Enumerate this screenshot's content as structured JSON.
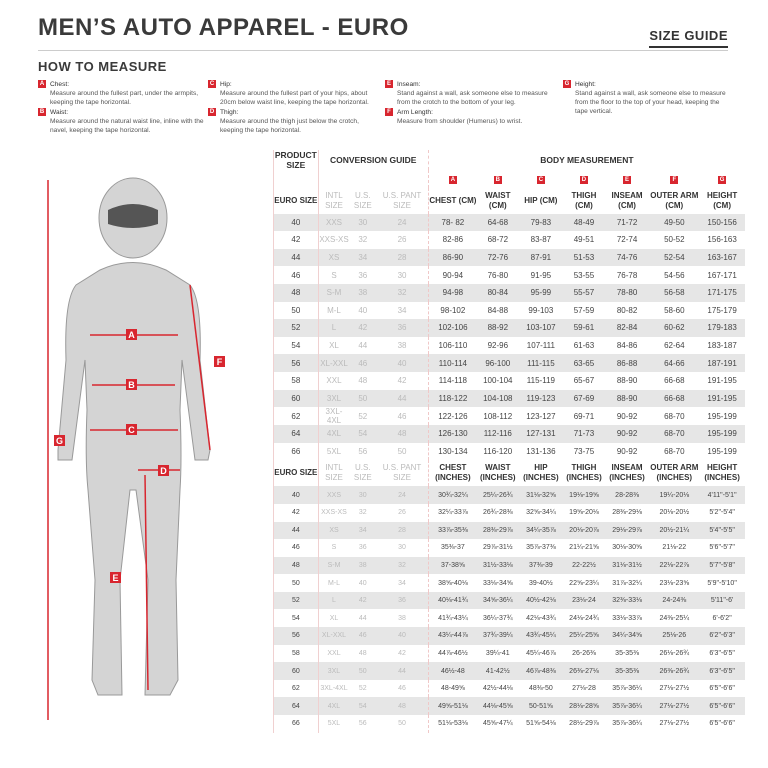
{
  "header": {
    "title": "MEN’S AUTO APPAREL - EURO",
    "size_guide": "SIZE GUIDE",
    "how_to_measure": "HOW TO MEASURE"
  },
  "instructions": [
    {
      "letter": "A",
      "label": "Chest:",
      "text": "Measure around the fullest part, under the armpits, keeping the tape horizontal."
    },
    {
      "letter": "B",
      "label": "Waist:",
      "text": "Measure around the natural waist line, inline with the navel, keeping the tape horizontal."
    },
    {
      "letter": "C",
      "label": "Hip:",
      "text": "Measure around the fullest part of your hips, about 20cm below waist line, keeping the tape horizontal."
    },
    {
      "letter": "D",
      "label": "Thigh:",
      "text": "Measure around the thigh just below the crotch, keeping the tape horizontal."
    },
    {
      "letter": "E",
      "label": "Inseam:",
      "text": "Stand against a wall, ask someone else to measure from the crotch to the bottom of your leg."
    },
    {
      "letter": "F",
      "label": "Arm Length:",
      "text": "Measure from shoulder (Humerus) to wrist."
    },
    {
      "letter": "G",
      "label": "Height:",
      "text": "Stand against a wall, ask someone else to measure from the floor to the top of your head, keeping the tape vertical."
    }
  ],
  "table": {
    "group_product": "PRODUCT SIZE",
    "group_conversion": "CONVERSION GUIDE",
    "group_body": "BODY MEASUREMENT",
    "accent": "#d8262f",
    "cm_headers": [
      "EURO SIZE",
      "INTL SIZE",
      "U.S. SIZE",
      "U.S. PANT SIZE",
      "CHEST (CM)",
      "WAIST (CM)",
      "HIP (CM)",
      "THIGH (CM)",
      "INSEAM (CM)",
      "OUTER ARM (CM)",
      "HEIGHT (CM)"
    ],
    "letters": [
      "A",
      "B",
      "C",
      "D",
      "E",
      "F",
      "G"
    ],
    "in_headers": [
      "EURO SIZE",
      "INTL SIZE",
      "U.S. SIZE",
      "U.S. PANT SIZE",
      "CHEST (INCHES)",
      "WAIST (INCHES)",
      "HIP (INCHES)",
      "THIGH (INCHES)",
      "INSEAM (INCHES)",
      "OUTER ARM (INCHES)",
      "HEIGHT (INCHES)"
    ],
    "sizes": [
      [
        "40",
        "XXS",
        "30",
        "24"
      ],
      [
        "42",
        "XXS-XS",
        "32",
        "26"
      ],
      [
        "44",
        "XS",
        "34",
        "28"
      ],
      [
        "46",
        "S",
        "36",
        "30"
      ],
      [
        "48",
        "S-M",
        "38",
        "32"
      ],
      [
        "50",
        "M-L",
        "40",
        "34"
      ],
      [
        "52",
        "L",
        "42",
        "36"
      ],
      [
        "54",
        "XL",
        "44",
        "38"
      ],
      [
        "56",
        "XL-XXL",
        "46",
        "40"
      ],
      [
        "58",
        "XXL",
        "48",
        "42"
      ],
      [
        "60",
        "3XL",
        "50",
        "44"
      ],
      [
        "62",
        "3XL-4XL",
        "52",
        "46"
      ],
      [
        "64",
        "4XL",
        "54",
        "48"
      ],
      [
        "66",
        "5XL",
        "56",
        "50"
      ]
    ],
    "cm_rows": [
      [
        "78- 82",
        "64-68",
        "79-83",
        "48-49",
        "71-72",
        "49-50",
        "150-156"
      ],
      [
        "82-86",
        "68-72",
        "83-87",
        "49-51",
        "72-74",
        "50-52",
        "156-163"
      ],
      [
        "86-90",
        "72-76",
        "87-91",
        "51-53",
        "74-76",
        "52-54",
        "163-167"
      ],
      [
        "90-94",
        "76-80",
        "91-95",
        "53-55",
        "76-78",
        "54-56",
        "167-171"
      ],
      [
        "94-98",
        "80-84",
        "95-99",
        "55-57",
        "78-80",
        "56-58",
        "171-175"
      ],
      [
        "98-102",
        "84-88",
        "99-103",
        "57-59",
        "80-82",
        "58-60",
        "175-179"
      ],
      [
        "102-106",
        "88-92",
        "103-107",
        "59-61",
        "82-84",
        "60-62",
        "179-183"
      ],
      [
        "106-110",
        "92-96",
        "107-111",
        "61-63",
        "84-86",
        "62-64",
        "183-187"
      ],
      [
        "110-114",
        "96-100",
        "111-115",
        "63-65",
        "86-88",
        "64-66",
        "187-191"
      ],
      [
        "114-118",
        "100-104",
        "115-119",
        "65-67",
        "88-90",
        "66-68",
        "191-195"
      ],
      [
        "118-122",
        "104-108",
        "119-123",
        "67-69",
        "88-90",
        "66-68",
        "191-195"
      ],
      [
        "122-126",
        "108-112",
        "123-127",
        "69-71",
        "90-92",
        "68-70",
        "195-199"
      ],
      [
        "126-130",
        "112-116",
        "127-131",
        "71-73",
        "90-92",
        "68-70",
        "195-199"
      ],
      [
        "130-134",
        "116-120",
        "131-136",
        "73-75",
        "90-92",
        "68-70",
        "195-199"
      ]
    ],
    "in_rows": [
      [
        "30¾-32¼",
        "25¼-26¾",
        "31⅛-32⅝",
        "19⅛-19⅝",
        "28-28⅜",
        "19¼-20⅛",
        "4'11\"-5'1\""
      ],
      [
        "32¼-33⅞",
        "26¾-28⅜",
        "32⅝-34¼",
        "19⅝-20⅛",
        "28⅜-29⅛",
        "20⅛-20½",
        "5'2\"-5'4\""
      ],
      [
        "33⅞-35⅜",
        "28⅜-29⅞",
        "34¼-35⅞",
        "20⅛-20⅞",
        "29⅛-29⅞",
        "20½-21¼",
        "5'4\"-5'5\""
      ],
      [
        "35⅜-37",
        "29⅞-31½",
        "35⅞-37⅜",
        "21¼-21⅝",
        "30⅛-30⅝",
        "21⅛-22",
        "5'6\"-5'7\""
      ],
      [
        "37-38⅝",
        "31½-33⅛",
        "37⅜-39",
        "22-22½",
        "31⅛-31½",
        "22⅛-22⅞",
        "5'7\"-5'8\""
      ],
      [
        "38⅝-40⅛",
        "33⅛-34⅝",
        "39-40½",
        "22⅝-23¼",
        "31⅞-32¼",
        "23⅛-23⅝",
        "5'9\"-5'10\""
      ],
      [
        "40⅛-41¾",
        "34⅝-36¼",
        "40½-42⅛",
        "23⅛-24",
        "32⅜-33⅛",
        "24-24⅜",
        "5'11\"-6'"
      ],
      [
        "41¾-43¼",
        "36¼-37¾",
        "42⅛-43¾",
        "24⅛-24¾",
        "33⅛-33⅞",
        "24⅜-25¼",
        "6'-6'2\""
      ],
      [
        "43¼-44⅞",
        "37¾-39¼",
        "43¾-45¼",
        "25¼-25⅝",
        "34¼-34⅝",
        "25⅛-26",
        "6'2\"-6'3\""
      ],
      [
        "44⅞-46½",
        "39¼-41",
        "45¼-46⅞",
        "26-26⅜",
        "35-35⅜",
        "26⅛-26¾",
        "6'3\"-6'5\""
      ],
      [
        "46½-48",
        "41-42½",
        "46⅞-48⅜",
        "26⅜-27⅛",
        "35-35⅜",
        "26⅜-26¾",
        "6'3\"-6'5\""
      ],
      [
        "48-49⅝",
        "42½-44⅛",
        "48⅜-50",
        "27⅛-28",
        "35⅞-36¼",
        "27⅛-27½",
        "6'5\"-6'6\""
      ],
      [
        "49⅝-51⅛",
        "44⅛-45⅝",
        "50-51⅝",
        "28⅛-28⅝",
        "35⅞-36¼",
        "27⅛-27½",
        "6'5\"-6'6\""
      ],
      [
        "51⅛-53⅛",
        "45⅝-47¼",
        "51⅝-54⅛",
        "28½-29⅞",
        "35⅞-36¼",
        "27⅛-27½",
        "6'5\"-6'6\""
      ]
    ]
  }
}
